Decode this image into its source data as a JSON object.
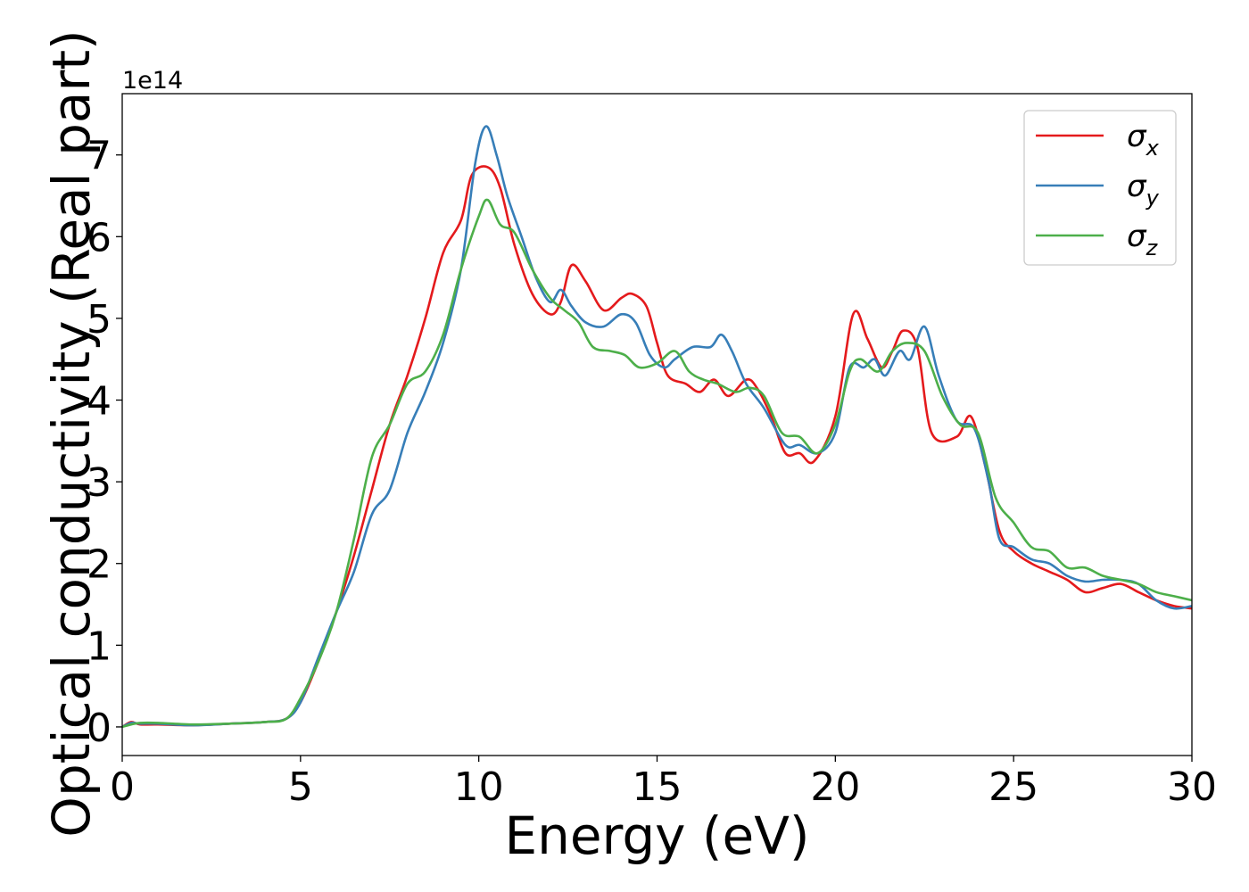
{
  "chart_data": {
    "type": "line",
    "xlabel": "Energy (eV)",
    "ylabel": "Optical conductivity (Real part)",
    "y_offset_text": "1e14",
    "xlim": [
      0,
      30
    ],
    "ylim": [
      -0.35,
      7.75
    ],
    "x_ticks": [
      0,
      5,
      10,
      15,
      20,
      25,
      30
    ],
    "y_ticks": [
      0,
      1,
      2,
      3,
      4,
      5,
      6,
      7
    ],
    "x_tick_labels": [
      "0",
      "5",
      "10",
      "15",
      "20",
      "25",
      "30"
    ],
    "y_tick_labels": [
      "0",
      "1",
      "2",
      "3",
      "4",
      "5",
      "6",
      "7"
    ],
    "grid": false,
    "legend_position": "top-right",
    "series": [
      {
        "name": "σx",
        "name_base": "σ",
        "name_sub": "x",
        "color": "#e41a1c",
        "points": [
          [
            0,
            0
          ],
          [
            0.25,
            0.06
          ],
          [
            0.5,
            0.03
          ],
          [
            1,
            0.03
          ],
          [
            2,
            0.02
          ],
          [
            3,
            0.04
          ],
          [
            4,
            0.06
          ],
          [
            4.6,
            0.1
          ],
          [
            5,
            0.3
          ],
          [
            5.5,
            0.8
          ],
          [
            6,
            1.4
          ],
          [
            6.5,
            2.1
          ],
          [
            7,
            2.9
          ],
          [
            7.5,
            3.7
          ],
          [
            8,
            4.3
          ],
          [
            8.5,
            5.0
          ],
          [
            9,
            5.8
          ],
          [
            9.5,
            6.2
          ],
          [
            9.8,
            6.75
          ],
          [
            10.25,
            6.85
          ],
          [
            10.6,
            6.6
          ],
          [
            11,
            5.9
          ],
          [
            11.5,
            5.3
          ],
          [
            12,
            5.05
          ],
          [
            12.3,
            5.2
          ],
          [
            12.6,
            5.65
          ],
          [
            13,
            5.45
          ],
          [
            13.5,
            5.1
          ],
          [
            14,
            5.25
          ],
          [
            14.3,
            5.3
          ],
          [
            14.7,
            5.15
          ],
          [
            15,
            4.7
          ],
          [
            15.3,
            4.3
          ],
          [
            15.8,
            4.2
          ],
          [
            16.2,
            4.1
          ],
          [
            16.6,
            4.25
          ],
          [
            17,
            4.05
          ],
          [
            17.5,
            4.25
          ],
          [
            17.8,
            4.15
          ],
          [
            18.2,
            3.8
          ],
          [
            18.6,
            3.35
          ],
          [
            19,
            3.35
          ],
          [
            19.4,
            3.25
          ],
          [
            20,
            3.8
          ],
          [
            20.5,
            5.05
          ],
          [
            20.9,
            4.75
          ],
          [
            21.3,
            4.4
          ],
          [
            21.6,
            4.6
          ],
          [
            21.9,
            4.85
          ],
          [
            22.3,
            4.65
          ],
          [
            22.7,
            3.6
          ],
          [
            23.4,
            3.55
          ],
          [
            23.8,
            3.8
          ],
          [
            24.2,
            3.2
          ],
          [
            24.6,
            2.4
          ],
          [
            25,
            2.15
          ],
          [
            25.5,
            2.0
          ],
          [
            26,
            1.9
          ],
          [
            26.5,
            1.8
          ],
          [
            27,
            1.65
          ],
          [
            27.5,
            1.7
          ],
          [
            28,
            1.75
          ],
          [
            28.5,
            1.65
          ],
          [
            29,
            1.55
          ],
          [
            29.5,
            1.48
          ],
          [
            30,
            1.45
          ]
        ]
      },
      {
        "name": "σy",
        "name_base": "σ",
        "name_sub": "y",
        "color": "#377eb8",
        "points": [
          [
            0,
            0
          ],
          [
            0.25,
            0.05
          ],
          [
            0.5,
            0.04
          ],
          [
            1,
            0.04
          ],
          [
            2,
            0.02
          ],
          [
            3,
            0.04
          ],
          [
            4,
            0.06
          ],
          [
            4.6,
            0.1
          ],
          [
            5,
            0.3
          ],
          [
            5.5,
            0.85
          ],
          [
            6,
            1.4
          ],
          [
            6.5,
            1.9
          ],
          [
            7,
            2.6
          ],
          [
            7.5,
            2.9
          ],
          [
            8,
            3.6
          ],
          [
            8.5,
            4.1
          ],
          [
            9,
            4.7
          ],
          [
            9.5,
            5.6
          ],
          [
            9.9,
            6.9
          ],
          [
            10.2,
            7.35
          ],
          [
            10.5,
            7.0
          ],
          [
            10.8,
            6.5
          ],
          [
            11.2,
            6.0
          ],
          [
            11.6,
            5.5
          ],
          [
            12,
            5.2
          ],
          [
            12.3,
            5.35
          ],
          [
            12.6,
            5.15
          ],
          [
            13,
            4.95
          ],
          [
            13.5,
            4.9
          ],
          [
            14,
            5.05
          ],
          [
            14.4,
            4.95
          ],
          [
            14.8,
            4.55
          ],
          [
            15.2,
            4.4
          ],
          [
            15.5,
            4.5
          ],
          [
            16,
            4.65
          ],
          [
            16.5,
            4.65
          ],
          [
            16.8,
            4.8
          ],
          [
            17.1,
            4.6
          ],
          [
            17.5,
            4.2
          ],
          [
            18,
            3.9
          ],
          [
            18.6,
            3.45
          ],
          [
            19,
            3.45
          ],
          [
            19.5,
            3.35
          ],
          [
            20,
            3.6
          ],
          [
            20.4,
            4.4
          ],
          [
            20.8,
            4.4
          ],
          [
            21.1,
            4.5
          ],
          [
            21.4,
            4.3
          ],
          [
            21.8,
            4.6
          ],
          [
            22.1,
            4.5
          ],
          [
            22.5,
            4.9
          ],
          [
            22.9,
            4.3
          ],
          [
            23.4,
            3.75
          ],
          [
            23.9,
            3.65
          ],
          [
            24.3,
            3.0
          ],
          [
            24.6,
            2.3
          ],
          [
            25,
            2.2
          ],
          [
            25.5,
            2.05
          ],
          [
            26,
            2.0
          ],
          [
            26.5,
            1.85
          ],
          [
            27,
            1.78
          ],
          [
            27.5,
            1.8
          ],
          [
            28,
            1.8
          ],
          [
            28.5,
            1.75
          ],
          [
            29,
            1.55
          ],
          [
            29.5,
            1.45
          ],
          [
            30,
            1.48
          ]
        ]
      },
      {
        "name": "σz",
        "name_base": "σ",
        "name_sub": "z",
        "color": "#4daf4a",
        "points": [
          [
            0,
            0
          ],
          [
            0.25,
            0.03
          ],
          [
            0.5,
            0.05
          ],
          [
            1,
            0.05
          ],
          [
            2,
            0.03
          ],
          [
            3,
            0.04
          ],
          [
            4,
            0.06
          ],
          [
            4.6,
            0.1
          ],
          [
            5,
            0.35
          ],
          [
            5.5,
            0.8
          ],
          [
            6,
            1.4
          ],
          [
            6.5,
            2.3
          ],
          [
            7,
            3.3
          ],
          [
            7.5,
            3.7
          ],
          [
            8,
            4.2
          ],
          [
            8.5,
            4.35
          ],
          [
            9,
            4.8
          ],
          [
            9.5,
            5.6
          ],
          [
            10,
            6.25
          ],
          [
            10.25,
            6.45
          ],
          [
            10.6,
            6.15
          ],
          [
            11,
            6.05
          ],
          [
            11.5,
            5.6
          ],
          [
            12,
            5.25
          ],
          [
            12.4,
            5.1
          ],
          [
            12.8,
            4.95
          ],
          [
            13.2,
            4.65
          ],
          [
            13.7,
            4.6
          ],
          [
            14.1,
            4.55
          ],
          [
            14.5,
            4.4
          ],
          [
            15,
            4.45
          ],
          [
            15.5,
            4.6
          ],
          [
            15.9,
            4.35
          ],
          [
            16.3,
            4.25
          ],
          [
            16.7,
            4.2
          ],
          [
            17.2,
            4.1
          ],
          [
            17.6,
            4.15
          ],
          [
            18,
            4.05
          ],
          [
            18.5,
            3.6
          ],
          [
            19,
            3.55
          ],
          [
            19.5,
            3.35
          ],
          [
            20,
            3.7
          ],
          [
            20.4,
            4.35
          ],
          [
            20.7,
            4.5
          ],
          [
            21.2,
            4.35
          ],
          [
            21.6,
            4.6
          ],
          [
            22,
            4.7
          ],
          [
            22.5,
            4.6
          ],
          [
            23,
            4.05
          ],
          [
            23.5,
            3.7
          ],
          [
            24,
            3.6
          ],
          [
            24.5,
            2.8
          ],
          [
            25,
            2.5
          ],
          [
            25.5,
            2.2
          ],
          [
            26,
            2.15
          ],
          [
            26.5,
            1.95
          ],
          [
            27,
            1.95
          ],
          [
            27.5,
            1.85
          ],
          [
            28,
            1.8
          ],
          [
            28.5,
            1.75
          ],
          [
            29,
            1.65
          ],
          [
            29.5,
            1.6
          ],
          [
            30,
            1.55
          ]
        ]
      }
    ]
  }
}
